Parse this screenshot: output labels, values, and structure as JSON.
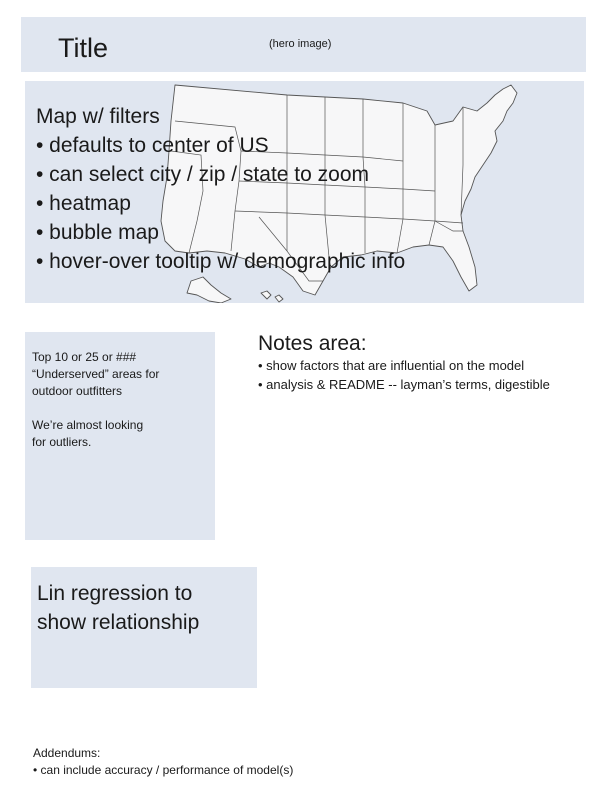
{
  "hero": {
    "title": "Title",
    "image_label": "(hero image)"
  },
  "map_section": {
    "heading": "Map w/ filters",
    "bullets": [
      "• defaults to center of US",
      "• can select city / zip / state to zoom",
      "• heatmap",
      "• bubble map",
      "• hover-over tooltip w/ demographic info"
    ],
    "map_icon": "us-states-map-icon"
  },
  "top_areas": {
    "paragraphs": [
      [
        "Top 10 or 25 or ###",
        "“Underserved” areas for",
        "outdoor outfitters"
      ],
      [
        "We’re almost looking",
        "for outliers."
      ]
    ]
  },
  "notes": {
    "heading": "Notes area:",
    "bullets": [
      "• show factors that are influential on the model",
      "• analysis & README -- layman’s terms, digestible"
    ]
  },
  "regression": {
    "lines": [
      "Lin regression to",
      "show relationship"
    ]
  },
  "addendums": {
    "heading": "Addendums:",
    "bullets": [
      "• can include accuracy / performance of model(s)"
    ]
  },
  "colors": {
    "panel_bg": "#e0e6f0",
    "map_fill": "#f7f7f8",
    "map_stroke": "#555555",
    "text": "#1a1a1a"
  }
}
